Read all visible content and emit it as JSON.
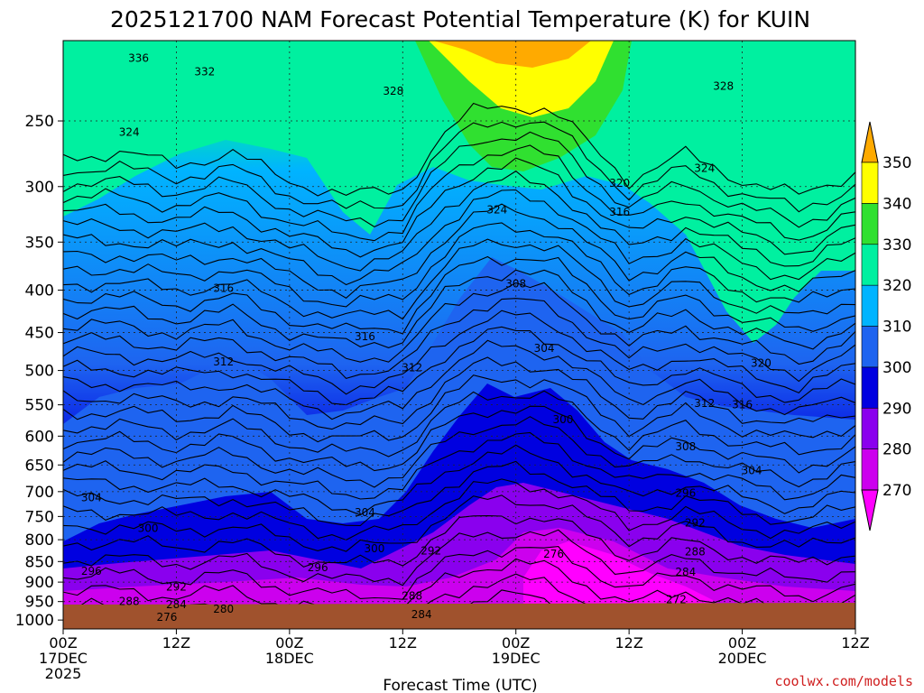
{
  "chart_data": {
    "type": "heatmap",
    "title": "2025121700 NAM Forecast Potential Temperature (K) for KUIN",
    "xlabel": "Forecast Time (UTC)",
    "ylabel": "",
    "y_ticks": [
      250,
      300,
      350,
      400,
      450,
      500,
      550,
      600,
      650,
      700,
      750,
      800,
      850,
      900,
      950,
      1000
    ],
    "y_range_hpa": [
      200,
      1025
    ],
    "y_scale": "log",
    "x_ticks": [
      {
        "hour": 0,
        "line1": "00Z",
        "line2": "17DEC",
        "line3": "2025"
      },
      {
        "hour": 12,
        "line1": "12Z",
        "line2": "",
        "line3": ""
      },
      {
        "hour": 24,
        "line1": "00Z",
        "line2": "18DEC",
        "line3": ""
      },
      {
        "hour": 36,
        "line1": "12Z",
        "line2": "",
        "line3": ""
      },
      {
        "hour": 48,
        "line1": "00Z",
        "line2": "19DEC",
        "line3": ""
      },
      {
        "hour": 60,
        "line1": "12Z",
        "line2": "",
        "line3": ""
      },
      {
        "hour": 72,
        "line1": "00Z",
        "line2": "20DEC",
        "line3": ""
      },
      {
        "hour": 84,
        "line1": "12Z",
        "line2": "",
        "line3": ""
      }
    ],
    "x_range_hours": [
      0,
      84
    ],
    "grid": true,
    "colorbar_levels": [
      270,
      280,
      290,
      300,
      310,
      320,
      330,
      340,
      350
    ],
    "colorbar_colors": [
      "#ff00ff",
      "#cc00ee",
      "#8a00ee",
      "#0000e0",
      "#1e64f0",
      "#00b4ff",
      "#00f0a0",
      "#30e030",
      "#ffff00",
      "#ffaa00"
    ],
    "contour_labels": [
      {
        "v": "336",
        "h": 8,
        "p": 210
      },
      {
        "v": "332",
        "h": 15,
        "p": 218
      },
      {
        "v": "328",
        "h": 35,
        "p": 230
      },
      {
        "v": "328",
        "h": 70,
        "p": 227
      },
      {
        "v": "324",
        "h": 7,
        "p": 258
      },
      {
        "v": "324",
        "h": 46,
        "p": 320
      },
      {
        "v": "324",
        "h": 68,
        "p": 285
      },
      {
        "v": "320",
        "h": 59,
        "p": 297
      },
      {
        "v": "320",
        "h": 74,
        "p": 490
      },
      {
        "v": "316",
        "h": 59,
        "p": 322
      },
      {
        "v": "316",
        "h": 17,
        "p": 398
      },
      {
        "v": "316",
        "h": 32,
        "p": 455
      },
      {
        "v": "316",
        "h": 72,
        "p": 550
      },
      {
        "v": "312",
        "h": 17,
        "p": 488
      },
      {
        "v": "312",
        "h": 37,
        "p": 496
      },
      {
        "v": "312",
        "h": 68,
        "p": 548
      },
      {
        "v": "308",
        "h": 48,
        "p": 393
      },
      {
        "v": "308",
        "h": 66,
        "p": 618
      },
      {
        "v": "304",
        "h": 51,
        "p": 470
      },
      {
        "v": "304",
        "h": 73,
        "p": 660
      },
      {
        "v": "304",
        "h": 3,
        "p": 712
      },
      {
        "v": "304",
        "h": 32,
        "p": 742
      },
      {
        "v": "300",
        "h": 53,
        "p": 573
      },
      {
        "v": "300",
        "h": 9,
        "p": 775
      },
      {
        "v": "300",
        "h": 33,
        "p": 820
      },
      {
        "v": "296",
        "h": 66,
        "p": 703
      },
      {
        "v": "296",
        "h": 3,
        "p": 873
      },
      {
        "v": "296",
        "h": 27,
        "p": 864
      },
      {
        "v": "292",
        "h": 39,
        "p": 825
      },
      {
        "v": "292",
        "h": 67,
        "p": 764
      },
      {
        "v": "292",
        "h": 12,
        "p": 912
      },
      {
        "v": "288",
        "h": 67,
        "p": 827
      },
      {
        "v": "288",
        "h": 7,
        "p": 949
      },
      {
        "v": "288",
        "h": 37,
        "p": 935
      },
      {
        "v": "284",
        "h": 66,
        "p": 875
      },
      {
        "v": "284",
        "h": 12,
        "p": 958
      },
      {
        "v": "284",
        "h": 38,
        "p": 985
      },
      {
        "v": "280",
        "h": 17,
        "p": 970
      },
      {
        "v": "276",
        "h": 52,
        "p": 833
      },
      {
        "v": "276",
        "h": 11,
        "p": 992
      },
      {
        "v": "272",
        "h": 65,
        "p": 945
      }
    ]
  },
  "credit": "coolwx.com/models"
}
